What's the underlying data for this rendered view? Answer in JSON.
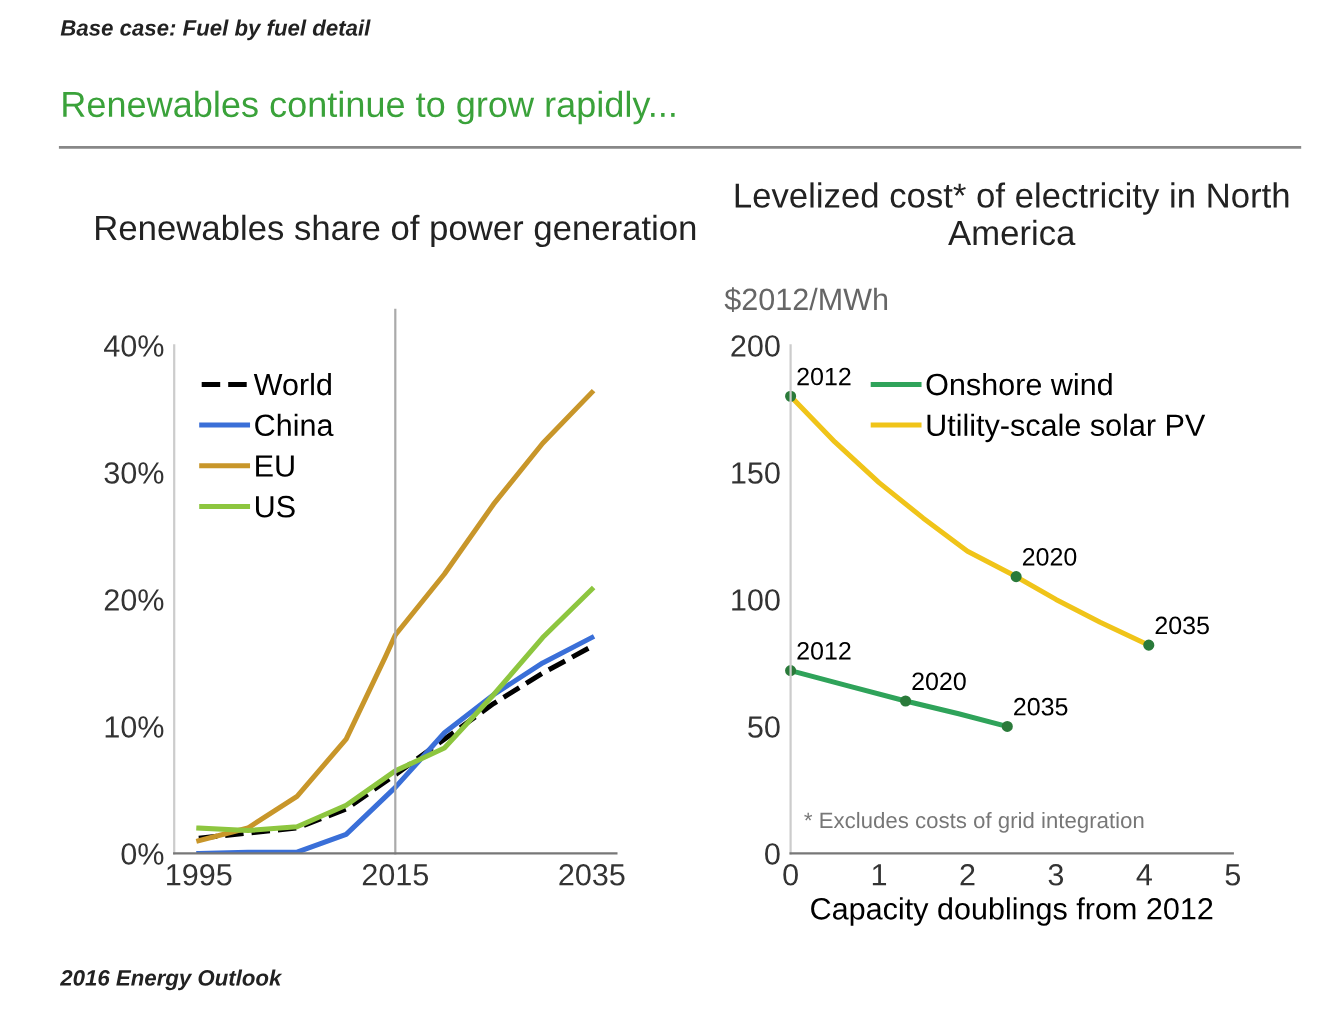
{
  "chart_data": [
    {
      "type": "line",
      "title": "Renewables share of power generation",
      "annotations": [
        "Base case: Fuel by fuel detail",
        "Renewables continue to grow rapidly...",
        "2016 Energy Outlook"
      ],
      "x": [
        1995,
        2000,
        2005,
        2010,
        2015,
        2020,
        2025,
        2030,
        2035
      ],
      "series": [
        {
          "name": "World",
          "color": "#000000",
          "line_style": "dashed",
          "values": [
            1.2,
            1.6,
            2.0,
            3.5,
            6.2,
            9.0,
            11.8,
            14.2,
            16.3
          ]
        },
        {
          "name": "China",
          "color": "#3a6fd8",
          "values": [
            0,
            0.1,
            0.1,
            1.5,
            5.2,
            9.5,
            12.5,
            15.0,
            17.0
          ]
        },
        {
          "name": "EU",
          "color": "#c8962a",
          "x": [
            1995,
            2000,
            2005,
            2010,
            2014,
            2015,
            2020,
            2025,
            2030,
            2035
          ],
          "values": [
            1.0,
            2.0,
            4.5,
            9.0,
            15.5,
            17.2,
            22.0,
            27.5,
            32.3,
            36.3
          ]
        },
        {
          "name": "US",
          "color": "#8dc63f",
          "values": [
            2.0,
            1.8,
            2.1,
            3.8,
            6.5,
            8.3,
            12.5,
            17.0,
            20.8
          ]
        }
      ],
      "xlim": [
        1992.5,
        2037.5
      ],
      "xticks": [
        1995,
        2015,
        2035
      ],
      "ylim": [
        0,
        40
      ],
      "yticks": [
        {
          "value": 0,
          "label": "0%"
        },
        {
          "value": 10,
          "label": "10%"
        },
        {
          "value": 20,
          "label": "20%"
        },
        {
          "value": 30,
          "label": "30%"
        },
        {
          "value": 40,
          "label": "40%"
        }
      ],
      "ref_lines": [
        {
          "axis": "x",
          "value": 2015,
          "color": "#aaaaaa"
        }
      ],
      "grid": false,
      "legend": "top left",
      "marker": "none"
    },
    {
      "type": "line",
      "title": "Levelized cost* of electricity in North America",
      "ylabel": "$2012/MWh",
      "xlabel": "Capacity doublings from 2012",
      "annotations": [
        "* Excludes costs of grid integration",
        {
          "text": "2012",
          "x": 0,
          "y": 72
        },
        {
          "text": "2020",
          "x": 1.3,
          "y": 60
        },
        {
          "text": "2035",
          "x": 2.45,
          "y": 50
        },
        {
          "text": "2012",
          "x": 0,
          "y": 180
        },
        {
          "text": "2020",
          "x": 2.55,
          "y": 109
        },
        {
          "text": "2035",
          "x": 4.05,
          "y": 82
        }
      ],
      "series": [
        {
          "name": "Onshore wind",
          "color": "#2fa35a",
          "x": [
            0,
            0.65,
            1.3,
            1.9,
            2.45
          ],
          "values": [
            72,
            66,
            60,
            55,
            50
          ]
        },
        {
          "name": "Utility-scale solar PV",
          "color": "#f0c419",
          "x": [
            0,
            0.5,
            1,
            1.5,
            2,
            2.55,
            3,
            3.5,
            4.05
          ],
          "values": [
            180,
            162,
            146,
            132,
            119,
            109,
            100,
            91,
            82
          ]
        }
      ],
      "xlim": [
        0,
        5
      ],
      "xticks": [
        0,
        1,
        2,
        3,
        4,
        5
      ],
      "ylim": [
        0,
        200
      ],
      "yticks": [
        0,
        50,
        100,
        150,
        200
      ],
      "grid": false,
      "legend": "top right"
    }
  ]
}
